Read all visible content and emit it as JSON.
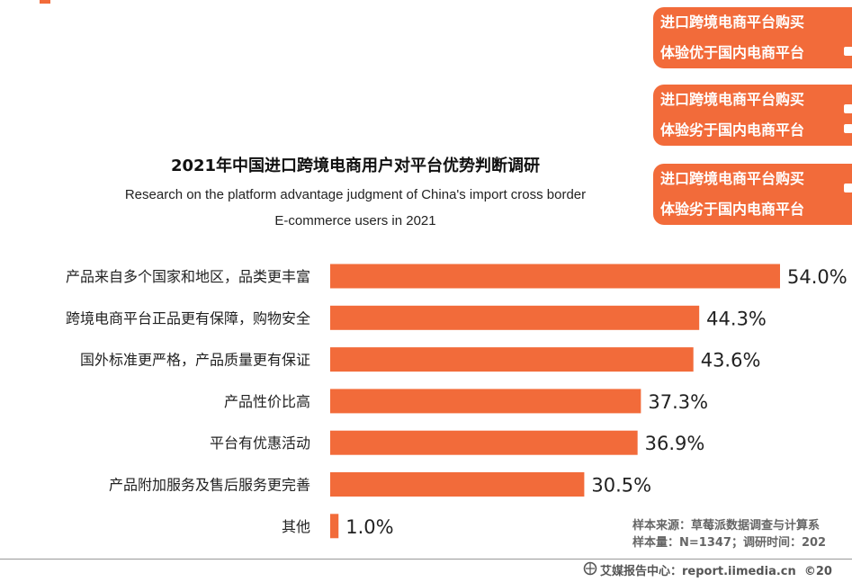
{
  "pills": [
    {
      "line1": "进口跨境电商平台购买",
      "line2": "体验优于国内电商平台"
    },
    {
      "line1": "进口跨境电商平台购买",
      "line2": "体验劣于国内电商平台"
    },
    {
      "line1": "进口跨境电商平台购买",
      "line2": "体验劣于国内电商平台"
    }
  ],
  "source": {
    "line1": "样本来源：草莓派数据调查与计算系",
    "line2": "样本量：N=1347；调研时间：202"
  },
  "footer": {
    "text": "艾媒报告中心：report.iimedia.cn",
    "copyright": "©20",
    "logo_icon": "iimedia-logo-icon"
  },
  "colors": {
    "accent": "#f26b3a",
    "bar": "#f26b3a"
  },
  "chart_data": {
    "type": "bar",
    "orientation": "horizontal",
    "title": "2021年中国进口跨境电商用户对平台优势判断调研",
    "subtitle": [
      "Research on the platform advantage judgment of China's import cross border",
      "E-commerce users in 2021"
    ],
    "categories": [
      "产品来自多个国家和地区，品类更丰富",
      "跨境电商平台正品更有保障，购物安全",
      "国外标准更严格，产品质量更有保证",
      "产品性价比高",
      "平台有优惠活动",
      "产品附加服务及售后服务更完善",
      "其他"
    ],
    "values": [
      54.0,
      44.3,
      43.6,
      37.3,
      36.9,
      30.5,
      1.0
    ],
    "value_labels": [
      "54.0%",
      "44.3%",
      "43.6%",
      "37.3%",
      "36.9%",
      "30.5%",
      "1.0%"
    ],
    "unit": "%",
    "xlim": [
      0,
      54.0
    ],
    "grid": false,
    "legend": "none"
  }
}
